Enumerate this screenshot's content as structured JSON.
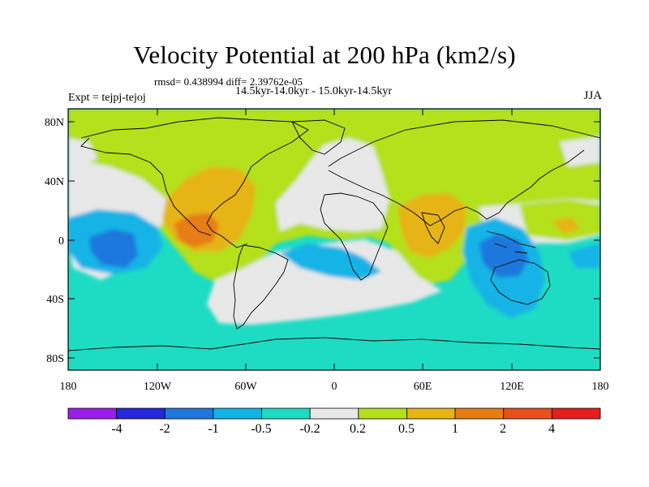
{
  "header": {
    "title": "Velocity Potential at 200 hPa (km2/s)",
    "stats": "rmsd= 0.438994 diff= 2.39762e-05",
    "subtitle": "14.5kyr-14.0kyr - 15.0kyr-14.5kyr",
    "experiment": "Expt = tejpj-tejoj",
    "season": "JJA"
  },
  "map": {
    "lat_ticks": [
      "80N",
      "40N",
      "0",
      "40S",
      "80S"
    ],
    "lon_ticks": [
      "180",
      "120W",
      "60W",
      "0",
      "60E",
      "120E",
      "180"
    ]
  },
  "colorbar": {
    "labels": [
      "-4",
      "-2",
      "-1",
      "-0.5",
      "-0.2",
      "0.2",
      "0.5",
      "1",
      "2",
      "4"
    ],
    "colors": [
      "#9b1ee8",
      "#2626dc",
      "#1e78dc",
      "#12b4e6",
      "#1edcc4",
      "#e8e8e8",
      "#b4e01e",
      "#e6b414",
      "#e67d14",
      "#e8501e",
      "#e61e1e"
    ]
  }
}
